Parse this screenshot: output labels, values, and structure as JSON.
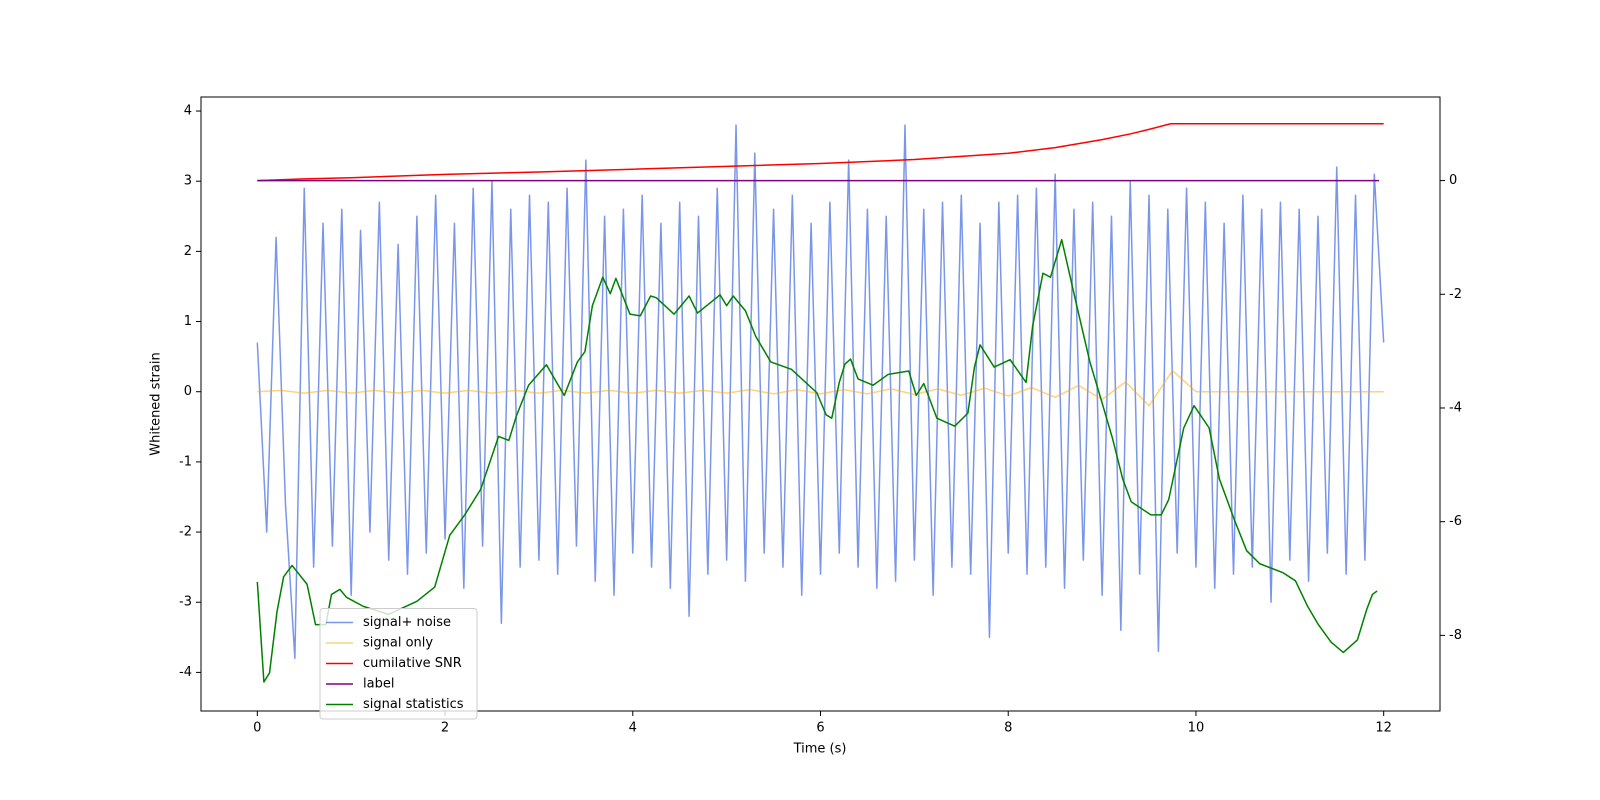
{
  "chart_data": {
    "type": "line",
    "xlabel": "Time (s)",
    "ylabel": "Whitened strain",
    "xlim": [
      -0.6,
      12.6
    ],
    "xticks": [
      0,
      2,
      4,
      6,
      8,
      10,
      12
    ],
    "ylim": [
      -4.55,
      4.2
    ],
    "yticks": [
      -4,
      -3,
      -2,
      -1,
      0,
      1,
      2,
      3,
      4
    ],
    "y2lim": [
      -9.33,
      1.47
    ],
    "y2ticks": [
      -8,
      -6,
      -4,
      -2,
      0
    ],
    "legend_loc": "lower left",
    "series": [
      {
        "name": "signal+ noise",
        "color": "royalblue",
        "alpha": 0.7,
        "x": [
          0,
          0.1,
          0.2,
          0.3,
          0.4,
          0.5,
          0.6,
          0.7,
          0.8,
          0.9,
          1,
          1.1,
          1.2,
          1.3,
          1.4,
          1.5,
          1.6,
          1.7,
          1.8,
          1.9,
          2,
          2.1,
          2.2,
          2.3,
          2.4,
          2.5,
          2.6,
          2.7,
          2.8,
          2.9,
          3,
          3.1,
          3.2,
          3.3,
          3.4,
          3.5,
          3.6,
          3.7,
          3.8,
          3.9,
          4,
          4.1,
          4.2,
          4.3,
          4.4,
          4.5,
          4.6,
          4.7,
          4.8,
          4.9,
          5,
          5.1,
          5.2,
          5.3,
          5.4,
          5.5,
          5.6,
          5.7,
          5.8,
          5.9,
          6,
          6.1,
          6.2,
          6.3,
          6.4,
          6.5,
          6.6,
          6.7,
          6.8,
          6.9,
          7,
          7.1,
          7.2,
          7.3,
          7.4,
          7.5,
          7.6,
          7.7,
          7.8,
          7.9,
          8,
          8.1,
          8.2,
          8.3,
          8.4,
          8.5,
          8.6,
          8.7,
          8.8,
          8.9,
          9,
          9.1,
          9.2,
          9.3,
          9.4,
          9.5,
          9.6,
          9.7,
          9.8,
          9.9,
          10,
          10.1,
          10.2,
          10.3,
          10.4,
          10.5,
          10.6,
          10.7,
          10.8,
          10.9,
          11,
          11.1,
          11.2,
          11.3,
          11.4,
          11.5,
          11.6,
          11.7,
          11.8,
          11.9,
          12
        ],
        "values": [
          0.7,
          -2.0,
          2.2,
          -1.6,
          -3.8,
          2.9,
          -2.5,
          2.4,
          -2.2,
          2.6,
          -2.9,
          2.3,
          -2.0,
          2.7,
          -2.4,
          2.1,
          -2.6,
          2.5,
          -2.3,
          2.8,
          -2.1,
          2.4,
          -2.8,
          2.9,
          -2.2,
          3.0,
          -3.3,
          2.6,
          -2.5,
          2.8,
          -2.4,
          2.7,
          -2.6,
          2.9,
          -2.2,
          3.3,
          -2.7,
          2.5,
          -2.9,
          2.6,
          -2.3,
          2.8,
          -2.5,
          2.4,
          -2.8,
          2.7,
          -3.2,
          2.5,
          -2.6,
          2.9,
          -2.4,
          3.8,
          -2.7,
          3.4,
          -2.3,
          2.6,
          -2.5,
          2.8,
          -2.9,
          2.4,
          -2.6,
          2.7,
          -2.3,
          3.3,
          -2.5,
          2.6,
          -2.8,
          2.5,
          -2.7,
          3.8,
          -2.4,
          2.6,
          -2.9,
          2.7,
          -2.5,
          2.8,
          -2.6,
          2.4,
          -3.5,
          2.7,
          -2.3,
          2.8,
          -2.6,
          2.9,
          -2.5,
          3.1,
          -2.8,
          2.6,
          -2.4,
          2.7,
          -2.9,
          2.5,
          -3.4,
          3.0,
          -2.6,
          2.8,
          -3.7,
          2.6,
          -2.3,
          2.9,
          -2.5,
          2.7,
          -2.8,
          2.4,
          -2.6,
          2.8,
          -2.5,
          2.6,
          -3.0,
          2.7,
          -2.4,
          2.6,
          -2.7,
          2.5,
          -2.3,
          3.2,
          -2.6,
          2.8,
          -2.4,
          3.1,
          0.7
        ]
      },
      {
        "name": "signal only",
        "color": "orange",
        "alpha": 0.5,
        "x": [
          0,
          0.25,
          0.5,
          0.75,
          1,
          1.25,
          1.5,
          1.75,
          2,
          2.25,
          2.5,
          2.75,
          3,
          3.25,
          3.5,
          3.75,
          4,
          4.25,
          4.5,
          4.75,
          5,
          5.25,
          5.5,
          5.75,
          6,
          6.25,
          6.5,
          6.75,
          7,
          7.25,
          7.5,
          7.75,
          8,
          8.25,
          8.5,
          8.75,
          9,
          9.25,
          9.5,
          9.75,
          10,
          12
        ],
        "values": [
          0,
          0.02,
          -0.02,
          0.02,
          -0.02,
          0.02,
          -0.02,
          0.02,
          -0.02,
          0.02,
          -0.02,
          0.02,
          -0.02,
          0.02,
          -0.02,
          0.02,
          -0.02,
          0.02,
          -0.02,
          0.02,
          -0.02,
          0.03,
          -0.03,
          0.03,
          -0.03,
          0.03,
          -0.03,
          0.04,
          -0.04,
          0.04,
          -0.05,
          0.05,
          -0.06,
          0.06,
          -0.08,
          0.09,
          -0.11,
          0.14,
          -0.2,
          0.3,
          0,
          0
        ]
      },
      {
        "name": "cumilative SNR",
        "color": "red",
        "axis": "y2",
        "x": [
          0,
          0.5,
          1,
          2,
          3,
          4,
          5,
          6,
          7,
          8,
          8.5,
          9,
          9.3,
          9.5,
          9.73,
          12
        ],
        "values": [
          0,
          0.03,
          0.05,
          0.11,
          0.15,
          0.2,
          0.25,
          0.3,
          0.37,
          0.48,
          0.58,
          0.72,
          0.82,
          0.9,
          1.0,
          1.0
        ]
      },
      {
        "name": "label",
        "color": "purple",
        "axis": "y2",
        "x": [
          0,
          11.95
        ],
        "values": [
          0,
          0
        ]
      },
      {
        "name": "signal statistics",
        "color": "green",
        "axis": "y2",
        "x": [
          0,
          0.07,
          0.13,
          0.21,
          0.28,
          0.37,
          0.53,
          0.62,
          0.73,
          0.79,
          0.88,
          0.95,
          1.13,
          1.4,
          1.7,
          1.89,
          2.05,
          2.21,
          2.38,
          2.57,
          2.68,
          2.76,
          2.89,
          3.08,
          3.27,
          3.41,
          3.49,
          3.57,
          3.68,
          3.76,
          3.82,
          3.97,
          4.08,
          4.19,
          4.25,
          4.44,
          4.6,
          4.69,
          4.93,
          5.0,
          5.07,
          5.2,
          5.31,
          5.47,
          5.69,
          5.96,
          6.06,
          6.12,
          6.2,
          6.26,
          6.32,
          6.4,
          6.56,
          6.72,
          6.94,
          7.02,
          7.1,
          7.24,
          7.43,
          7.57,
          7.64,
          7.7,
          7.85,
          8.02,
          8.19,
          8.26,
          8.37,
          8.45,
          8.57,
          8.73,
          8.87,
          9.0,
          9.11,
          9.22,
          9.31,
          9.52,
          9.63,
          9.71,
          9.87,
          9.98,
          10.14,
          10.25,
          10.41,
          10.54,
          10.68,
          10.93,
          11.06,
          11.19,
          11.3,
          11.44,
          11.57,
          11.72,
          11.82,
          11.88,
          11.93
        ],
        "values": [
          -7.06,
          -8.82,
          -8.66,
          -7.58,
          -6.97,
          -6.77,
          -7.1,
          -7.81,
          -7.81,
          -7.28,
          -7.19,
          -7.33,
          -7.49,
          -7.63,
          -7.4,
          -7.15,
          -6.24,
          -5.88,
          -5.43,
          -4.5,
          -4.57,
          -4.14,
          -3.6,
          -3.24,
          -3.78,
          -3.19,
          -3.01,
          -2.2,
          -1.7,
          -1.99,
          -1.72,
          -2.35,
          -2.38,
          -2.03,
          -2.06,
          -2.35,
          -2.03,
          -2.33,
          -2.01,
          -2.2,
          -2.03,
          -2.29,
          -2.74,
          -3.19,
          -3.32,
          -3.73,
          -4.12,
          -4.18,
          -3.55,
          -3.23,
          -3.14,
          -3.49,
          -3.6,
          -3.41,
          -3.35,
          -3.78,
          -3.57,
          -4.18,
          -4.32,
          -4.09,
          -3.28,
          -2.89,
          -3.28,
          -3.15,
          -3.55,
          -2.56,
          -1.63,
          -1.7,
          -1.04,
          -2.2,
          -3.19,
          -3.91,
          -4.53,
          -5.25,
          -5.65,
          -5.88,
          -5.88,
          -5.61,
          -4.35,
          -3.96,
          -4.35,
          -5.25,
          -5.97,
          -6.51,
          -6.74,
          -6.9,
          -7.04,
          -7.49,
          -7.8,
          -8.12,
          -8.3,
          -8.08,
          -7.54,
          -7.28,
          -7.22
        ]
      }
    ]
  }
}
